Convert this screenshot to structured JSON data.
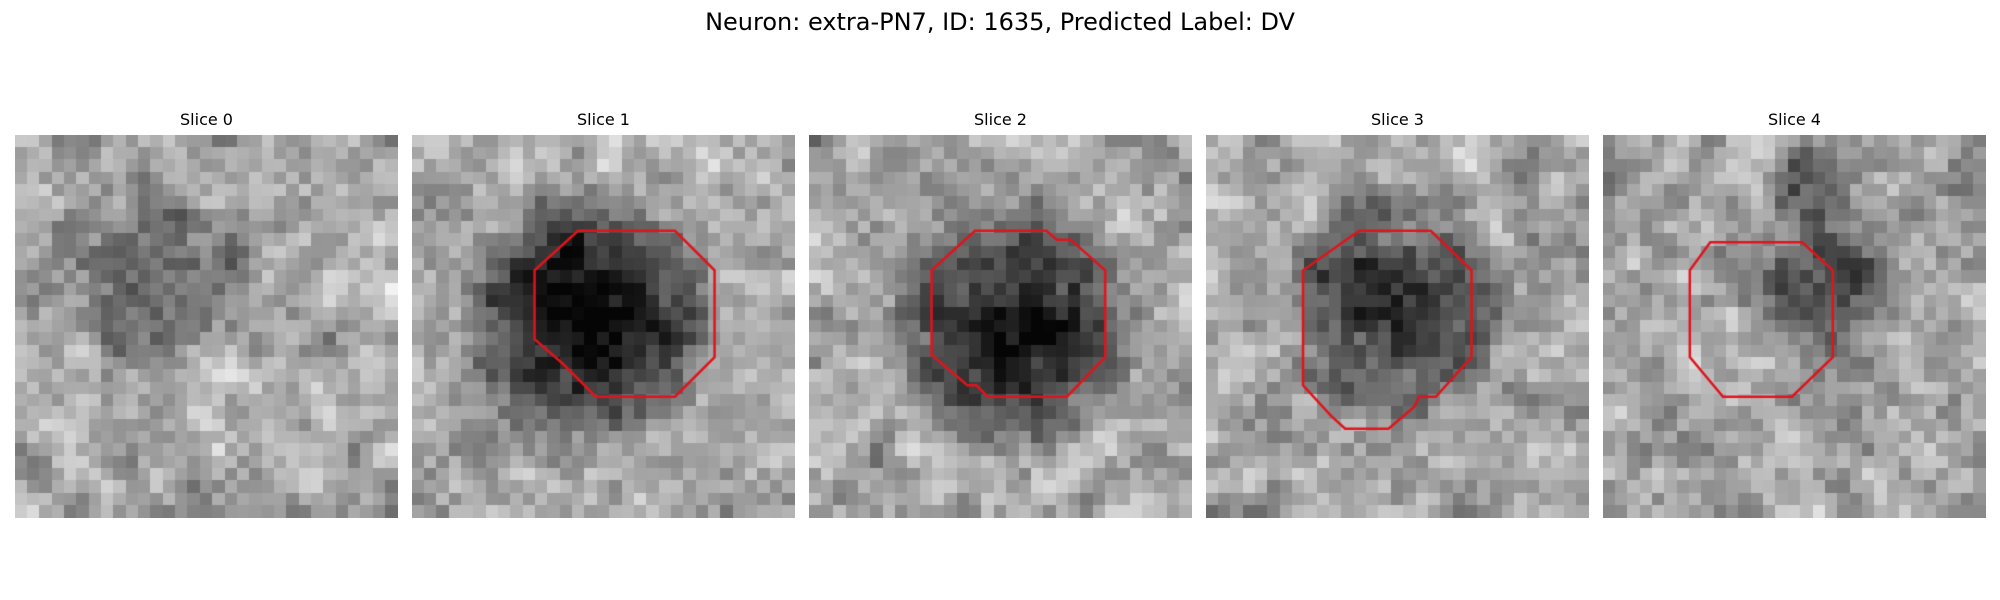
{
  "figure": {
    "title": "Neuron: extra-PN7, ID: 1635, Predicted Label: DV"
  },
  "panels": [
    {
      "title": "Slice 0",
      "has_outline": false
    },
    {
      "title": "Slice 1",
      "has_outline": true
    },
    {
      "title": "Slice 2",
      "has_outline": true
    },
    {
      "title": "Slice 3",
      "has_outline": true
    },
    {
      "title": "Slice 4",
      "has_outline": true
    }
  ],
  "colors": {
    "outline": "#e0141c",
    "background": "#ffffff"
  }
}
